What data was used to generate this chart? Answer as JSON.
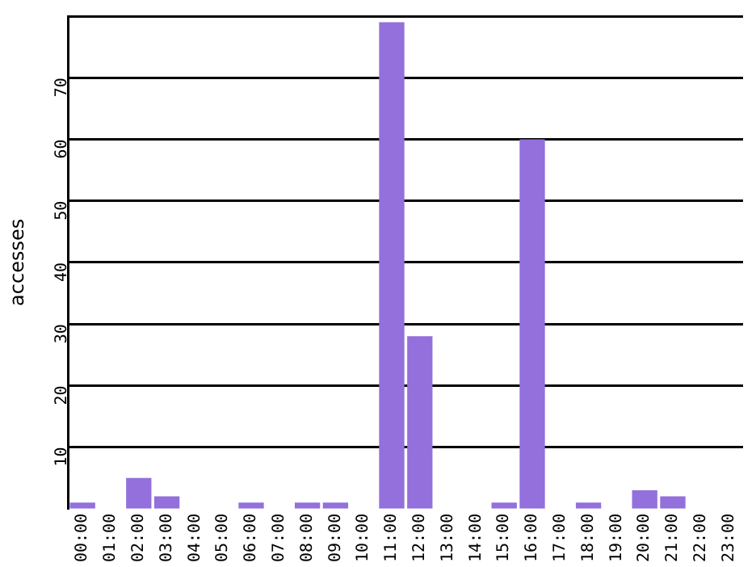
{
  "chart_data": {
    "type": "bar",
    "ylabel": "accesses",
    "categories": [
      "00:00",
      "01:00",
      "02:00",
      "03:00",
      "04:00",
      "05:00",
      "06:00",
      "07:00",
      "08:00",
      "09:00",
      "10:00",
      "11:00",
      "12:00",
      "13:00",
      "14:00",
      "15:00",
      "16:00",
      "17:00",
      "18:00",
      "19:00",
      "20:00",
      "21:00",
      "22:00",
      "23:00"
    ],
    "values": [
      1,
      0,
      5,
      2,
      0,
      0,
      1,
      0,
      1,
      1,
      0,
      79,
      28,
      0,
      0,
      1,
      60,
      0,
      1,
      0,
      3,
      2,
      0,
      0
    ],
    "color": "#9370db",
    "ylim": [
      0,
      80
    ],
    "yticks": [
      10,
      20,
      30,
      40,
      50,
      60,
      70,
      {
        "value": 80,
        "label": null
      }
    ],
    "grid": "y"
  }
}
